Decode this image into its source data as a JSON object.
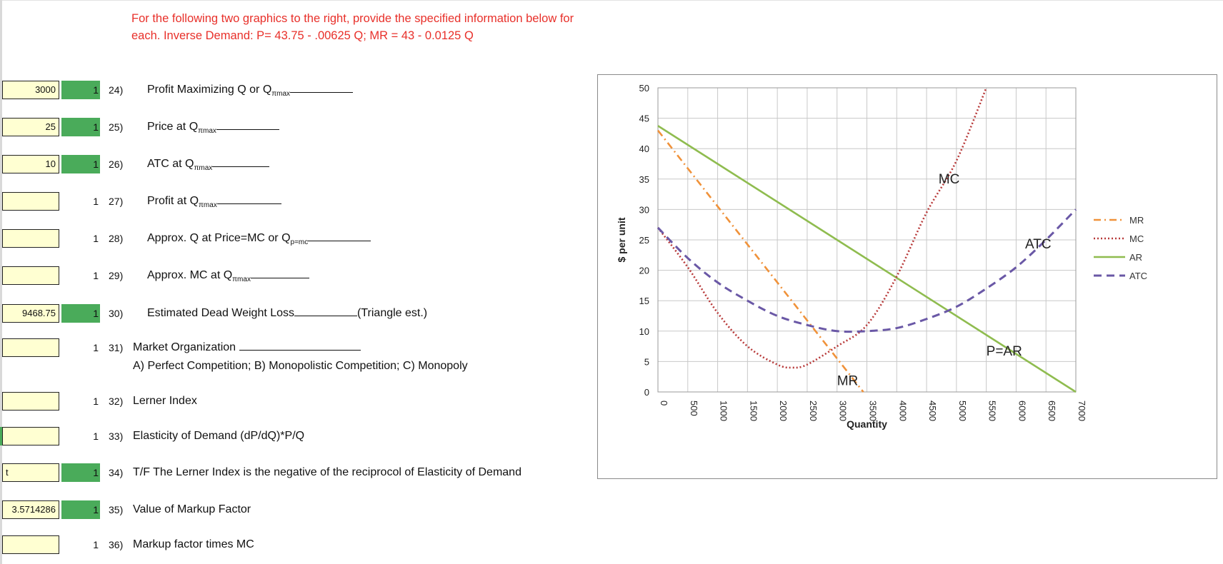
{
  "instructions": {
    "line1": "For the following two graphics to the right, provide the specified information below for",
    "line2": "each.  Inverse Demand:  P= 43.75 - .00625 Q; MR = 43 - 0.0125 Q"
  },
  "rows": [
    {
      "answer": "3000",
      "points": "1",
      "num": "24)",
      "text": "Profit Maximizing Q or Q",
      "sub": "πmax"
    },
    {
      "answer": "25",
      "points": "1",
      "num": "25)",
      "text": "Price at Q",
      "sub": "πmax"
    },
    {
      "answer": "10",
      "points": "1",
      "num": "26)",
      "text": "ATC at Q",
      "sub": "πmax"
    },
    {
      "answer": "",
      "points": "1",
      "num": "27)",
      "text": "Profit at Q",
      "sub": "πmax"
    },
    {
      "answer": "",
      "points": "1",
      "num": "28)",
      "text": "Approx. Q at Price=MC or Q",
      "sub": "p=mc"
    },
    {
      "answer": "",
      "points": "1",
      "num": "29)",
      "text": "Approx. MC at Q",
      "sub": "πmax"
    },
    {
      "answer": "9468.75",
      "points": "1",
      "num": "30)",
      "text": "Estimated Dead Weight Loss",
      "after": "(Triangle est.)"
    },
    {
      "answer": "",
      "points": "1",
      "num": "31)",
      "text": "Market Organization",
      "line2": "A) Perfect Competition; B) Monopolistic Competition; C) Monopoly"
    },
    {
      "answer": "",
      "points": "1",
      "num": "32)",
      "text": "Lerner Index"
    },
    {
      "answer": "",
      "points": "1",
      "num": "33)",
      "text": "Elasticity of Demand (dP/dQ)*P/Q"
    },
    {
      "answer": "t",
      "points": "1",
      "num": "34)",
      "text": "T/F  The Lerner Index is the negative of the reciprocol of Elasticity of Demand"
    },
    {
      "answer": "3.5714286",
      "points": "1",
      "num": "35)",
      "text": "Value of Markup Factor"
    },
    {
      "answer": "",
      "points": "1",
      "num": "36)",
      "text": "Markup factor times MC"
    }
  ],
  "colors": {
    "MR": "#f0923a",
    "MC": "#b83a3a",
    "AR": "#8fbc4f",
    "ATC": "#6a58a6"
  },
  "chart_data": {
    "type": "line",
    "xlabel": "Quantity",
    "ylabel": "$ per unit",
    "xlim": [
      0,
      7000
    ],
    "ylim": [
      0,
      50
    ],
    "xticks": [
      0,
      500,
      1000,
      1500,
      2000,
      2500,
      3000,
      3500,
      4000,
      4500,
      5000,
      5500,
      6000,
      6500,
      7000
    ],
    "yticks": [
      0,
      5,
      10,
      15,
      20,
      25,
      30,
      35,
      40,
      45,
      50
    ],
    "legend": [
      "MR",
      "MC",
      "AR",
      "ATC"
    ],
    "legend_position": "right",
    "curve_labels": [
      "MC",
      "ATC",
      "P=AR",
      "MR"
    ],
    "series": [
      {
        "name": "AR",
        "x": [
          0,
          7000
        ],
        "y": [
          43.75,
          0
        ]
      },
      {
        "name": "MR",
        "x": [
          0,
          3440
        ],
        "y": [
          43,
          0
        ]
      },
      {
        "name": "MC",
        "x": [
          0,
          500,
          1000,
          1500,
          2000,
          2250,
          2500,
          3000,
          3500,
          4000,
          4500,
          5000,
          5500
        ],
        "y": [
          27,
          20.5,
          13,
          7.5,
          4.5,
          4,
          4.5,
          7.5,
          11,
          19,
          29.5,
          38,
          50
        ]
      },
      {
        "name": "ATC",
        "x": [
          0,
          500,
          1000,
          1500,
          2000,
          2500,
          3000,
          3500,
          4000,
          4500,
          5000,
          5500,
          6000,
          6500,
          7000
        ],
        "y": [
          27,
          22,
          18,
          15,
          12.5,
          11,
          10,
          10,
          10.5,
          12,
          14,
          17,
          20.5,
          25,
          30
        ]
      }
    ]
  }
}
